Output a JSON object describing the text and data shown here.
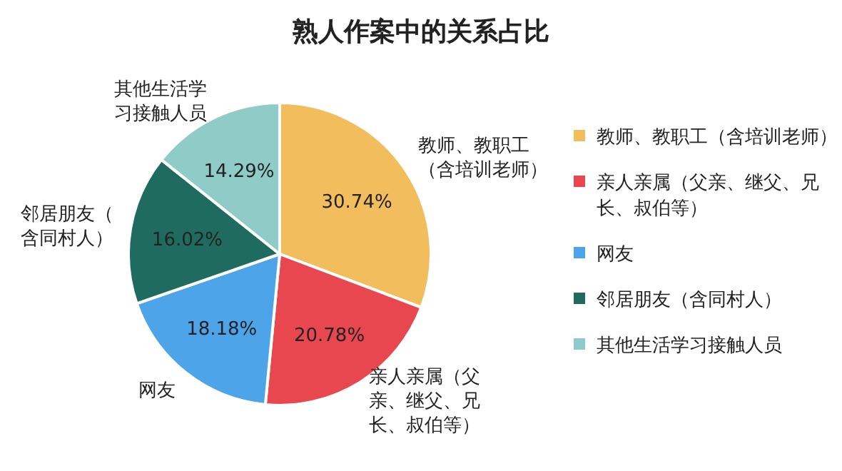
{
  "chart_data": {
    "type": "pie",
    "title": "熟人作案中的关系占比",
    "categories": [
      "教师、教职工（含培训老师）",
      "亲人亲属（父亲、继父、兄长、叔伯等）",
      "网友",
      "邻居朋友（含同村人）",
      "其他生活学习接触人员"
    ],
    "values": [
      30.74,
      20.78,
      18.18,
      16.02,
      14.29
    ],
    "value_labels": [
      "30.74%",
      "20.78%",
      "18.18%",
      "16.02%",
      "14.29%"
    ],
    "colors": [
      "#f1bd5d",
      "#e9474f",
      "#4ea4e9",
      "#1f6b5f",
      "#8fcbc7"
    ],
    "legend": "right"
  }
}
